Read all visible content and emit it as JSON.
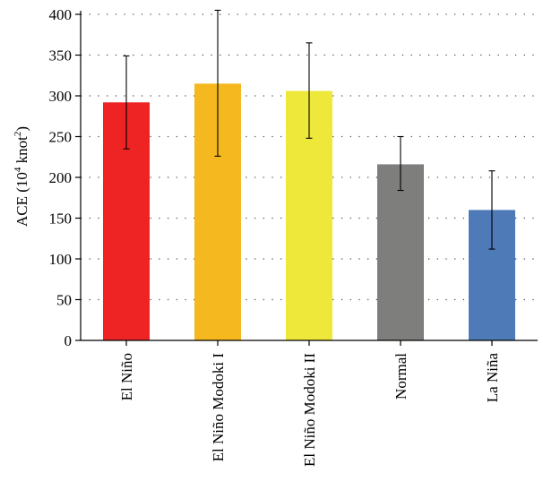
{
  "chart_data": {
    "type": "bar",
    "categories": [
      "El Niño",
      "El Niño Modoki I",
      "El Niño Modoki II",
      "Normal",
      "La Niña"
    ],
    "values": [
      292,
      315,
      306,
      216,
      160
    ],
    "error_low": [
      235,
      226,
      248,
      184,
      112
    ],
    "error_high": [
      349,
      405,
      365,
      250,
      208
    ],
    "colors": [
      "#ee2424",
      "#f5b81e",
      "#eee83a",
      "#7e7e7c",
      "#4e7ab8"
    ],
    "ylabel": {
      "main": "ACE (10",
      "sup1": "4",
      "mid": " knot",
      "sup2": "2",
      "end": ")"
    },
    "ylim": [
      0,
      400
    ],
    "yticks": [
      0,
      50,
      100,
      150,
      200,
      250,
      300,
      350,
      400
    ],
    "grid": true
  }
}
